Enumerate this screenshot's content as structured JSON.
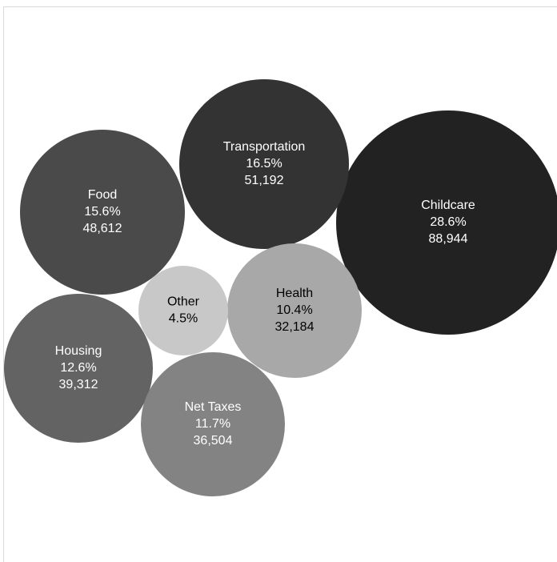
{
  "chart_data": {
    "type": "bubble",
    "title": "",
    "items": [
      {
        "label": "Childcare",
        "percent": "28.6%",
        "value": 88944,
        "value_label": "88,944",
        "color": "#222222",
        "text_color": "#ffffff"
      },
      {
        "label": "Transportation",
        "percent": "16.5%",
        "value": 51192,
        "value_label": "51,192",
        "color": "#333333",
        "text_color": "#ffffff"
      },
      {
        "label": "Food",
        "percent": "15.6%",
        "value": 48612,
        "value_label": "48,612",
        "color": "#4a4a4a",
        "text_color": "#ffffff"
      },
      {
        "label": "Housing",
        "percent": "12.6%",
        "value": 39312,
        "value_label": "39,312",
        "color": "#636363",
        "text_color": "#ffffff"
      },
      {
        "label": "Net Taxes",
        "percent": "11.7%",
        "value": 36504,
        "value_label": "36,504",
        "color": "#838383",
        "text_color": "#ffffff"
      },
      {
        "label": "Health",
        "percent": "10.4%",
        "value": 32184,
        "value_label": "32,184",
        "color": "#a8a8a8",
        "text_color": "#000000"
      },
      {
        "label": "Other",
        "percent": "4.5%",
        "value": 14000,
        "value_label": "",
        "color": "#c8c8c8",
        "text_color": "#000000"
      }
    ]
  }
}
